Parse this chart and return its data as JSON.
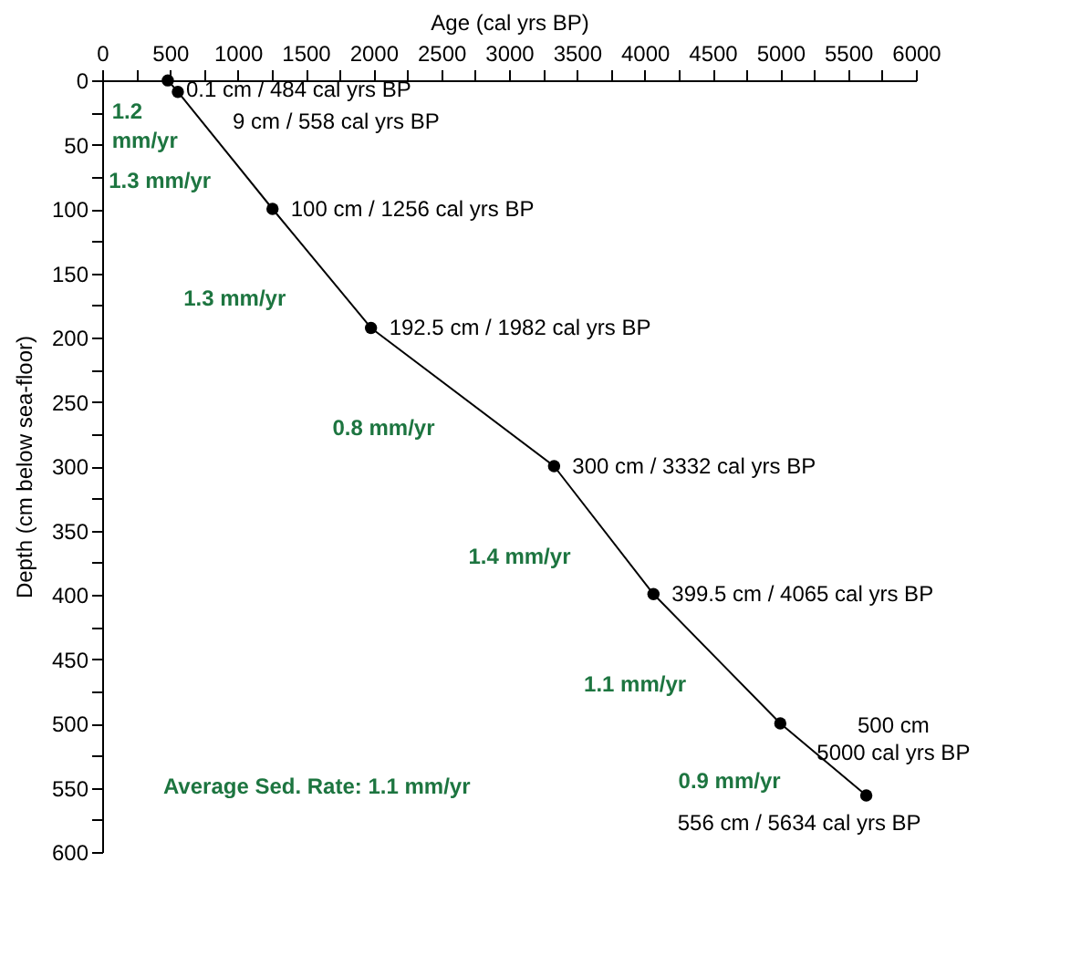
{
  "chart_data": {
    "type": "line",
    "xlabel": "Age (cal yrs BP)",
    "ylabel": "Depth (cm below sea-floor)",
    "x": [
      484,
      558,
      1256,
      1982,
      3332,
      4065,
      5000,
      5634
    ],
    "series": [
      {
        "color": "#000000",
        "values": [
          0.1,
          9,
          100,
          192.5,
          300,
          399.5,
          500,
          556
        ]
      }
    ],
    "marker": "circle",
    "line_style": "solid",
    "grid": false,
    "xlim": [
      0,
      6000
    ],
    "xticks": [
      0,
      {
        "value": 250,
        "label": null
      },
      500,
      {
        "value": 750,
        "label": null
      },
      1000,
      {
        "value": 1250,
        "label": null
      },
      1500,
      {
        "value": 1750,
        "label": null
      },
      2000,
      {
        "value": 2250,
        "label": null
      },
      2500,
      {
        "value": 2750,
        "label": null
      },
      3000,
      {
        "value": 3250,
        "label": null
      },
      3500,
      {
        "value": 3750,
        "label": null
      },
      4000,
      {
        "value": 4250,
        "label": null
      },
      4500,
      {
        "value": 4750,
        "label": null
      },
      5000,
      {
        "value": 5250,
        "label": null
      },
      5500,
      {
        "value": 5750,
        "label": null
      },
      6000
    ],
    "ylim": [
      600,
      0
    ],
    "yticks": [
      0,
      {
        "value": 25,
        "label": null
      },
      50,
      {
        "value": 75,
        "label": null
      },
      100,
      {
        "value": 125,
        "label": null
      },
      150,
      {
        "value": 175,
        "label": null
      },
      200,
      {
        "value": 225,
        "label": null
      },
      250,
      {
        "value": 275,
        "label": null
      },
      300,
      {
        "value": 325,
        "label": null
      },
      350,
      {
        "value": 375,
        "label": null
      },
      400,
      {
        "value": 425,
        "label": null
      },
      450,
      {
        "value": 475,
        "label": null
      },
      500,
      {
        "value": 525,
        "label": null
      },
      550,
      {
        "value": 575,
        "label": null
      },
      600
    ],
    "annotations": [
      {
        "text": "0.1 cm / 484 cal yrs BP",
        "x": 484,
        "y": 0.1
      },
      {
        "text": "9 cm / 558 cal yrs BP",
        "x": 558,
        "y": 9
      },
      {
        "text": "100 cm / 1256 cal yrs BP",
        "x": 1256,
        "y": 100
      },
      {
        "text": "192.5 cm / 1982 cal yrs BP",
        "x": 1982,
        "y": 192.5
      },
      {
        "text": "300 cm / 3332 cal yrs BP",
        "x": 3332,
        "y": 300
      },
      {
        "text": "399.5 cm / 4065 cal yrs BP",
        "x": 4065,
        "y": 399.5
      },
      {
        "text": "500 cm\n5000 cal yrs BP",
        "x": 5000,
        "y": 500
      },
      {
        "text": "556 cm / 5634 cal yrs BP",
        "x": 5634,
        "y": 556
      },
      "1.2\nmm/yr",
      "1.3 mm/yr",
      "1.3 mm/yr",
      "0.8 mm/yr",
      "1.4 mm/yr",
      "1.1 mm/yr",
      "0.9 mm/yr",
      "Average Sed. Rate: 1.1 mm/yr"
    ]
  }
}
